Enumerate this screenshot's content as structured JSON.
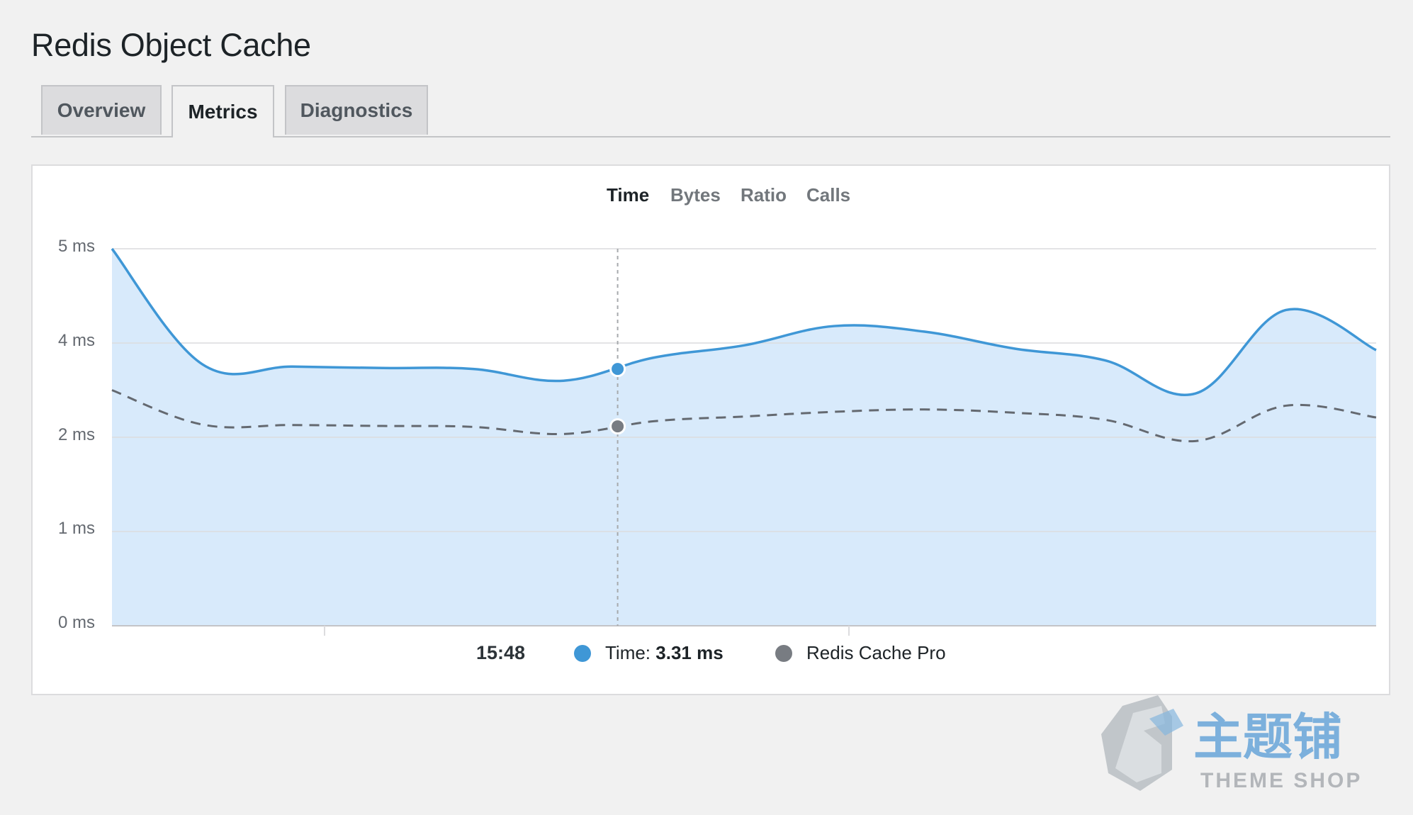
{
  "page": {
    "title": "Redis Object Cache"
  },
  "tabs": [
    {
      "label": "Overview",
      "active": false
    },
    {
      "label": "Metrics",
      "active": true
    },
    {
      "label": "Diagnostics",
      "active": false
    }
  ],
  "metric_tabs": [
    {
      "label": "Time",
      "active": true
    },
    {
      "label": "Bytes",
      "active": false
    },
    {
      "label": "Ratio",
      "active": false
    },
    {
      "label": "Calls",
      "active": false
    }
  ],
  "chart_data": {
    "type": "area",
    "y_ticks": [
      "5 ms",
      "4 ms",
      "2 ms",
      "1 ms",
      "0 ms"
    ],
    "series": [
      {
        "values": [
          5.0,
          3.55,
          3.5,
          3.47,
          3.45,
          3.2,
          3.69,
          3.95,
          4.18,
          4.12,
          3.88,
          3.63,
          2.93,
          4.35,
          3.85
        ],
        "color": "#3f97d6",
        "style": "solid"
      },
      {
        "name": "Redis Cache Pro",
        "values": [
          3.0,
          2.27,
          2.26,
          2.24,
          2.22,
          2.07,
          2.34,
          2.44,
          2.54,
          2.59,
          2.52,
          2.37,
          1.96,
          2.67,
          2.42
        ],
        "color": "#646970",
        "style": "dashed"
      }
    ],
    "hover": {
      "index": 5.6,
      "time": "15:48",
      "time_value_label": "Time:",
      "time_value": "3.31 ms"
    },
    "grid": true
  },
  "watermark": {
    "cn": "主题铺",
    "en": "THEME SHOP"
  }
}
